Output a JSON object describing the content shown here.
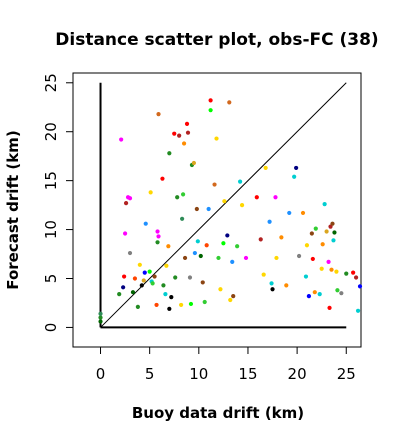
{
  "chart_data": {
    "type": "scatter",
    "title": "Distance scatter plot, obs-FC (38)",
    "xlabel": "Buoy data drift (km)",
    "ylabel": "Forecast drift (km)",
    "xlim": [
      -2.8,
      26.5
    ],
    "ylim": [
      -2.0,
      26.0
    ],
    "xticks": [
      0,
      5,
      10,
      15,
      20,
      25
    ],
    "yticks": [
      0,
      5,
      10,
      15,
      20,
      25
    ],
    "grid": false,
    "legend": "none",
    "reference_lines": [
      {
        "type": "diagonal",
        "from": [
          0,
          0
        ],
        "to": [
          25,
          25
        ]
      },
      {
        "type": "vertical",
        "from": [
          0,
          0
        ],
        "to": [
          0,
          25
        ]
      },
      {
        "type": "horizontal",
        "from": [
          0,
          0
        ],
        "to": [
          25,
          0
        ]
      }
    ],
    "points": [
      {
        "x": 0.0,
        "y": 0.6,
        "color": "#006400"
      },
      {
        "x": 0.0,
        "y": 1.0,
        "color": "#228B22"
      },
      {
        "x": 0.0,
        "y": 1.4,
        "color": "#2E8B57"
      },
      {
        "x": 2.1,
        "y": 19.2,
        "color": "#FF00FF"
      },
      {
        "x": 1.9,
        "y": 3.4,
        "color": "#228B22"
      },
      {
        "x": 2.3,
        "y": 4.1,
        "color": "#000080"
      },
      {
        "x": 2.5,
        "y": 9.6,
        "color": "#FF00FF"
      },
      {
        "x": 2.6,
        "y": 12.7,
        "color": "#B22222"
      },
      {
        "x": 2.8,
        "y": 13.3,
        "color": "#FF00FF"
      },
      {
        "x": 3.0,
        "y": 13.2,
        "color": "#FF00FF"
      },
      {
        "x": 2.4,
        "y": 5.2,
        "color": "#FF0000"
      },
      {
        "x": 3.0,
        "y": 7.6,
        "color": "#808080"
      },
      {
        "x": 3.3,
        "y": 3.6,
        "color": "#006400"
      },
      {
        "x": 3.5,
        "y": 5.0,
        "color": "#FF4500"
      },
      {
        "x": 3.8,
        "y": 2.1,
        "color": "#228B22"
      },
      {
        "x": 4.0,
        "y": 6.4,
        "color": "#FFD700"
      },
      {
        "x": 4.2,
        "y": 4.3,
        "color": "#000000"
      },
      {
        "x": 4.5,
        "y": 5.6,
        "color": "#0000FF"
      },
      {
        "x": 4.6,
        "y": 10.6,
        "color": "#1E90FF"
      },
      {
        "x": 4.4,
        "y": 4.8,
        "color": "#DAA520"
      },
      {
        "x": 5.0,
        "y": 5.7,
        "color": "#00FF00"
      },
      {
        "x": 5.1,
        "y": 13.8,
        "color": "#FFD700"
      },
      {
        "x": 5.2,
        "y": 4.7,
        "color": "#00CED1"
      },
      {
        "x": 5.3,
        "y": 4.5,
        "color": "#32CD32"
      },
      {
        "x": 5.5,
        "y": 5.2,
        "color": "#8B4513"
      },
      {
        "x": 5.8,
        "y": 9.8,
        "color": "#FF00FF"
      },
      {
        "x": 5.9,
        "y": 9.3,
        "color": "#FF00FF"
      },
      {
        "x": 5.8,
        "y": 8.7,
        "color": "#228B22"
      },
      {
        "x": 5.7,
        "y": 2.3,
        "color": "#FF4500"
      },
      {
        "x": 5.9,
        "y": 21.8,
        "color": "#D2691E"
      },
      {
        "x": 6.3,
        "y": 15.2,
        "color": "#FF0000"
      },
      {
        "x": 6.4,
        "y": 4.3,
        "color": "#228B22"
      },
      {
        "x": 6.6,
        "y": 3.4,
        "color": "#00CED1"
      },
      {
        "x": 6.7,
        "y": 6.3,
        "color": "#FFD700"
      },
      {
        "x": 6.9,
        "y": 8.3,
        "color": "#FF8C00"
      },
      {
        "x": 7.0,
        "y": 17.8,
        "color": "#228B22"
      },
      {
        "x": 7.0,
        "y": 1.9,
        "color": "#000000"
      },
      {
        "x": 7.2,
        "y": 3.1,
        "color": "#000000"
      },
      {
        "x": 7.5,
        "y": 19.8,
        "color": "#FF0000"
      },
      {
        "x": 7.6,
        "y": 5.1,
        "color": "#228B22"
      },
      {
        "x": 7.8,
        "y": 13.3,
        "color": "#228B22"
      },
      {
        "x": 8.0,
        "y": 19.6,
        "color": "#B22222"
      },
      {
        "x": 8.2,
        "y": 2.3,
        "color": "#FFD700"
      },
      {
        "x": 8.3,
        "y": 11.1,
        "color": "#2E8B57"
      },
      {
        "x": 8.4,
        "y": 13.6,
        "color": "#32CD32"
      },
      {
        "x": 8.5,
        "y": 18.8,
        "color": "#FF8C00"
      },
      {
        "x": 8.6,
        "y": 7.1,
        "color": "#8B4513"
      },
      {
        "x": 8.8,
        "y": 20.8,
        "color": "#FF0000"
      },
      {
        "x": 8.9,
        "y": 19.9,
        "color": "#B22222"
      },
      {
        "x": 9.1,
        "y": 5.1,
        "color": "#808080"
      },
      {
        "x": 9.2,
        "y": 2.4,
        "color": "#00FF00"
      },
      {
        "x": 9.3,
        "y": 16.6,
        "color": "#228B22"
      },
      {
        "x": 9.5,
        "y": 16.8,
        "color": "#DAA520"
      },
      {
        "x": 9.6,
        "y": 7.6,
        "color": "#1E90FF"
      },
      {
        "x": 9.8,
        "y": 12.1,
        "color": "#8B4513"
      },
      {
        "x": 9.9,
        "y": 8.8,
        "color": "#00CED1"
      },
      {
        "x": 10.2,
        "y": 7.3,
        "color": "#006400"
      },
      {
        "x": 10.4,
        "y": 4.6,
        "color": "#8B4513"
      },
      {
        "x": 10.6,
        "y": 2.6,
        "color": "#32CD32"
      },
      {
        "x": 10.8,
        "y": 8.4,
        "color": "#FF4500"
      },
      {
        "x": 11.0,
        "y": 12.1,
        "color": "#1E90FF"
      },
      {
        "x": 11.2,
        "y": 22.2,
        "color": "#00FF00"
      },
      {
        "x": 11.2,
        "y": 23.2,
        "color": "#FF0000"
      },
      {
        "x": 11.6,
        "y": 14.6,
        "color": "#D2691E"
      },
      {
        "x": 11.8,
        "y": 19.3,
        "color": "#FFD700"
      },
      {
        "x": 12.0,
        "y": 7.1,
        "color": "#32CD32"
      },
      {
        "x": 12.2,
        "y": 3.9,
        "color": "#FFD700"
      },
      {
        "x": 12.5,
        "y": 8.6,
        "color": "#00FF00"
      },
      {
        "x": 12.6,
        "y": 12.9,
        "color": "#FFD700"
      },
      {
        "x": 12.9,
        "y": 9.4,
        "color": "#000080"
      },
      {
        "x": 13.1,
        "y": 23.0,
        "color": "#D2691E"
      },
      {
        "x": 13.2,
        "y": 2.8,
        "color": "#FFD700"
      },
      {
        "x": 13.4,
        "y": 6.7,
        "color": "#1E90FF"
      },
      {
        "x": 13.5,
        "y": 3.2,
        "color": "#8B4513"
      },
      {
        "x": 13.9,
        "y": 8.3,
        "color": "#32CD32"
      },
      {
        "x": 14.4,
        "y": 12.5,
        "color": "#FFD700"
      },
      {
        "x": 14.2,
        "y": 14.9,
        "color": "#00CED1"
      },
      {
        "x": 14.8,
        "y": 7.1,
        "color": "#FF00FF"
      },
      {
        "x": 15.9,
        "y": 13.3,
        "color": "#FF0000"
      },
      {
        "x": 16.3,
        "y": 9.0,
        "color": "#B22222"
      },
      {
        "x": 16.6,
        "y": 5.4,
        "color": "#FFD700"
      },
      {
        "x": 16.8,
        "y": 16.3,
        "color": "#FFD700"
      },
      {
        "x": 17.2,
        "y": 10.8,
        "color": "#1E90FF"
      },
      {
        "x": 17.4,
        "y": 4.5,
        "color": "#00CED1"
      },
      {
        "x": 17.5,
        "y": 3.9,
        "color": "#000000"
      },
      {
        "x": 17.8,
        "y": 13.3,
        "color": "#FF00FF"
      },
      {
        "x": 17.9,
        "y": 7.1,
        "color": "#FFD700"
      },
      {
        "x": 18.4,
        "y": 9.2,
        "color": "#FF8C00"
      },
      {
        "x": 18.9,
        "y": 4.3,
        "color": "#FF8C00"
      },
      {
        "x": 19.2,
        "y": 11.7,
        "color": "#1E90FF"
      },
      {
        "x": 19.7,
        "y": 15.4,
        "color": "#00CED1"
      },
      {
        "x": 19.9,
        "y": 16.3,
        "color": "#000080"
      },
      {
        "x": 20.2,
        "y": 7.3,
        "color": "#808080"
      },
      {
        "x": 20.6,
        "y": 11.7,
        "color": "#FF8C00"
      },
      {
        "x": 20.9,
        "y": 5.2,
        "color": "#00CED1"
      },
      {
        "x": 21.0,
        "y": 8.4,
        "color": "#FFD700"
      },
      {
        "x": 21.2,
        "y": 3.2,
        "color": "#0000FF"
      },
      {
        "x": 21.5,
        "y": 9.6,
        "color": "#8B4513"
      },
      {
        "x": 21.6,
        "y": 7.0,
        "color": "#FF0000"
      },
      {
        "x": 21.8,
        "y": 3.6,
        "color": "#FF8C00"
      },
      {
        "x": 21.9,
        "y": 10.1,
        "color": "#32CD32"
      },
      {
        "x": 22.3,
        "y": 3.4,
        "color": "#00CED1"
      },
      {
        "x": 22.5,
        "y": 6.0,
        "color": "#FFD700"
      },
      {
        "x": 22.6,
        "y": 8.5,
        "color": "#FF8C00"
      },
      {
        "x": 22.8,
        "y": 12.6,
        "color": "#00CED1"
      },
      {
        "x": 23.0,
        "y": 9.8,
        "color": "#DAA520"
      },
      {
        "x": 23.2,
        "y": 6.7,
        "color": "#FF00FF"
      },
      {
        "x": 23.3,
        "y": 2.0,
        "color": "#FF0000"
      },
      {
        "x": 23.4,
        "y": 10.3,
        "color": "#B22222"
      },
      {
        "x": 23.5,
        "y": 5.9,
        "color": "#FF8C00"
      },
      {
        "x": 23.6,
        "y": 10.6,
        "color": "#8B4513"
      },
      {
        "x": 23.7,
        "y": 8.9,
        "color": "#00CED1"
      },
      {
        "x": 23.8,
        "y": 9.7,
        "color": "#006400"
      },
      {
        "x": 24.0,
        "y": 5.7,
        "color": "#FFD700"
      },
      {
        "x": 24.1,
        "y": 3.8,
        "color": "#32CD32"
      },
      {
        "x": 24.5,
        "y": 3.5,
        "color": "#808080"
      },
      {
        "x": 25.0,
        "y": 5.5,
        "color": "#228B22"
      },
      {
        "x": 25.7,
        "y": 5.6,
        "color": "#FF0000"
      },
      {
        "x": 26.0,
        "y": 5.1,
        "color": "#B22222"
      },
      {
        "x": 26.2,
        "y": 1.7,
        "color": "#00CED1"
      },
      {
        "x": 26.4,
        "y": 4.2,
        "color": "#0000FF"
      }
    ]
  }
}
